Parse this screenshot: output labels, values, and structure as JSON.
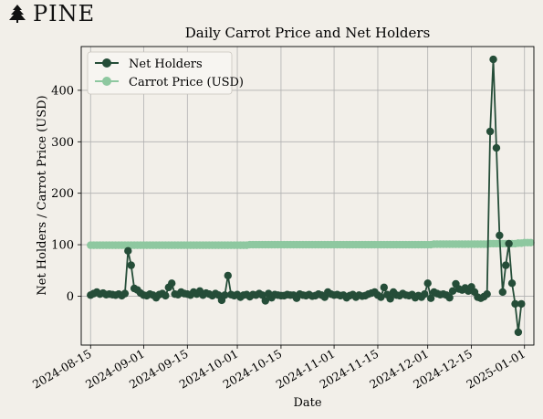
{
  "brand": {
    "name": "PINE",
    "icon": "pine-tree-icon"
  },
  "chart_data": {
    "type": "line",
    "title": "Daily Carrot Price and Net Holders",
    "xlabel": "Date",
    "ylabel": "Net Holders / Carrot Price (USD)",
    "xlim": [
      "2024-08-12",
      "2025-01-04"
    ],
    "ylim": [
      -95,
      485
    ],
    "x_ticks": [
      "2024-08-15",
      "2024-09-01",
      "2024-09-15",
      "2024-10-01",
      "2024-10-15",
      "2024-11-01",
      "2024-11-15",
      "2024-12-01",
      "2024-12-15",
      "2025-01-01"
    ],
    "y_ticks": [
      0,
      100,
      200,
      300,
      400
    ],
    "grid": true,
    "legend_position": "top-left",
    "x_start": "2024-08-15",
    "series": [
      {
        "name": "Net Holders",
        "color": "#254d38",
        "values": [
          2,
          5,
          8,
          4,
          6,
          3,
          4,
          3,
          2,
          4,
          1,
          5,
          88,
          60,
          15,
          12,
          6,
          2,
          1,
          4,
          2,
          -3,
          3,
          5,
          1,
          17,
          25,
          4,
          3,
          8,
          5,
          4,
          2,
          8,
          4,
          10,
          2,
          6,
          4,
          1,
          5,
          2,
          -8,
          2,
          40,
          3,
          1,
          3,
          -2,
          2,
          3,
          -1,
          3,
          2,
          5,
          2,
          -9,
          5,
          -3,
          3,
          2,
          1,
          1,
          3,
          2,
          2,
          -4,
          4,
          2,
          1,
          3,
          0,
          1,
          4,
          2,
          -2,
          8,
          4,
          2,
          3,
          1,
          2,
          -3,
          1,
          3,
          -2,
          2,
          0,
          1,
          4,
          6,
          8,
          2,
          -2,
          17,
          3,
          -5,
          8,
          2,
          1,
          5,
          2,
          1,
          3,
          -3,
          1,
          -2,
          4,
          25,
          -4,
          8,
          5,
          3,
          4,
          2,
          -3,
          10,
          24,
          14,
          12,
          16,
          10,
          18,
          8,
          -2,
          -4,
          -1,
          4,
          320,
          460,
          288,
          118,
          8,
          60,
          102,
          25,
          -15,
          -70,
          -15
        ],
        "ylim": null
      },
      {
        "name": "Carrot Price (USD)",
        "color": "#8ec8a0",
        "values": [
          99,
          99,
          99,
          99,
          99,
          99,
          99,
          99,
          99,
          99,
          99,
          99,
          99,
          99,
          99,
          99,
          99,
          99,
          99,
          99,
          99,
          99,
          99,
          99,
          99,
          99,
          99,
          99,
          99,
          99,
          99,
          99,
          99,
          99,
          99,
          99,
          99,
          99,
          99,
          99,
          99,
          99,
          99,
          99,
          99,
          99,
          99,
          99,
          99,
          99,
          99,
          100,
          100,
          100,
          100,
          100,
          100,
          100,
          100,
          100,
          100,
          100,
          100,
          100,
          100,
          100,
          100,
          100,
          100,
          100,
          100,
          100,
          100,
          100,
          100,
          100,
          100,
          100,
          100,
          100,
          100,
          100,
          100,
          100,
          100,
          100,
          100,
          100,
          100,
          100,
          100,
          100,
          100,
          100,
          100,
          100,
          100,
          100,
          100,
          100,
          100,
          100,
          100,
          100,
          100,
          100,
          100,
          100,
          100,
          100,
          101,
          101,
          101,
          101,
          101,
          101,
          101,
          101,
          101,
          101,
          101,
          101,
          101,
          101,
          101,
          101,
          101,
          101,
          102,
          102,
          102,
          102,
          102,
          102,
          102,
          102,
          102,
          103,
          103,
          104,
          104,
          104
        ]
      }
    ]
  }
}
